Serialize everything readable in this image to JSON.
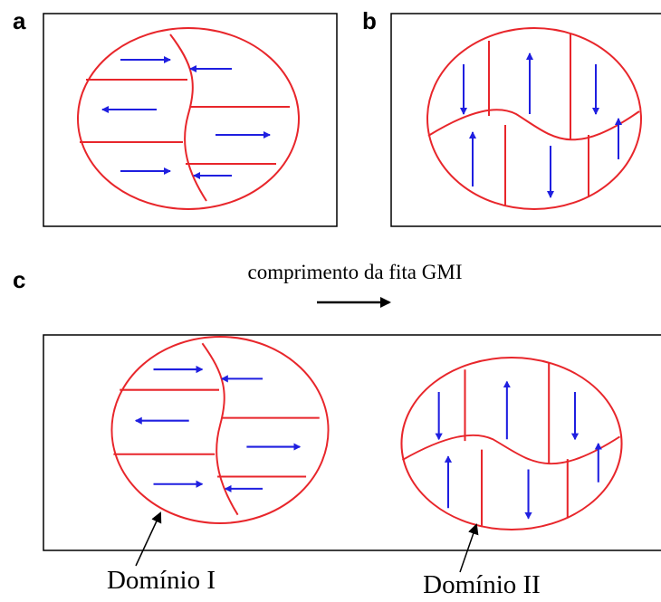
{
  "panels": [
    {
      "label": "a"
    },
    {
      "label": "b"
    },
    {
      "label": "c"
    }
  ],
  "caption": "comprimento da fita GMI",
  "domains": [
    {
      "label": "Domínio I"
    },
    {
      "label": "Domínio II"
    }
  ]
}
